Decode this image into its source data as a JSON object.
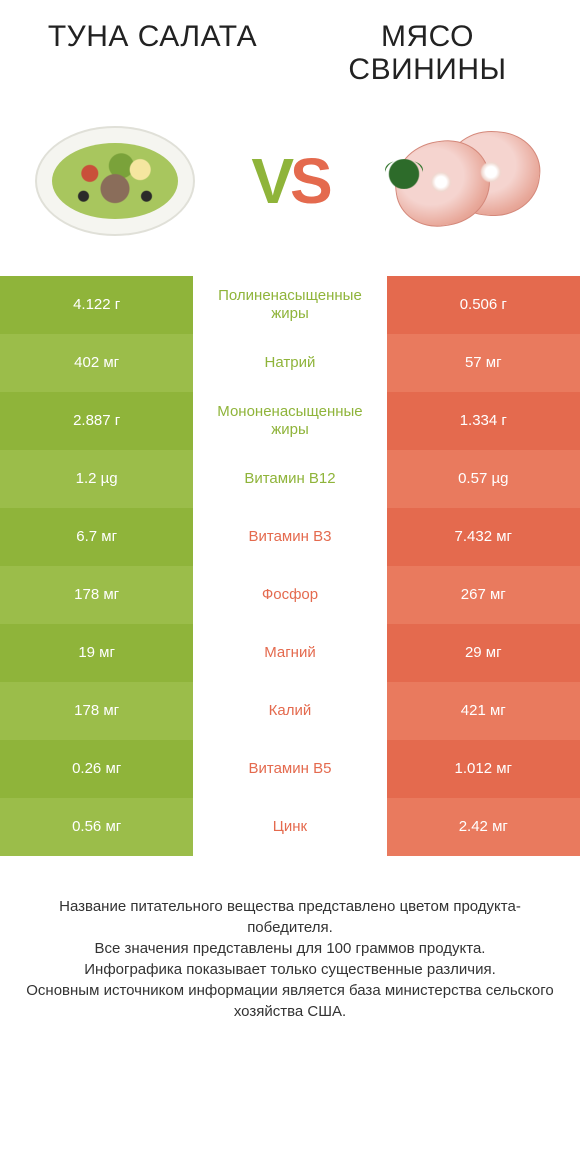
{
  "header": {
    "left_title": "ТУНА САЛАТА",
    "right_title": "МЯСО СВИНИНЫ"
  },
  "vs_label": {
    "v": "V",
    "s": "S"
  },
  "colors": {
    "left_a": "#8fb43a",
    "left_b": "#9bbd4a",
    "right_a": "#e46a4e",
    "right_b": "#e97a5e",
    "mid_left_text": "#8fb43a",
    "mid_right_text": "#e46a4e"
  },
  "rows": [
    {
      "left": "4.122 г",
      "mid": "Полиненасыщенные жиры",
      "right": "0.506 г",
      "winner": "left"
    },
    {
      "left": "402 мг",
      "mid": "Натрий",
      "right": "57 мг",
      "winner": "left"
    },
    {
      "left": "2.887 г",
      "mid": "Мононенасыщенные жиры",
      "right": "1.334 г",
      "winner": "left"
    },
    {
      "left": "1.2 µg",
      "mid": "Витамин B12",
      "right": "0.57 µg",
      "winner": "left"
    },
    {
      "left": "6.7 мг",
      "mid": "Витамин B3",
      "right": "7.432 мг",
      "winner": "right"
    },
    {
      "left": "178 мг",
      "mid": "Фосфор",
      "right": "267 мг",
      "winner": "right"
    },
    {
      "left": "19 мг",
      "mid": "Магний",
      "right": "29 мг",
      "winner": "right"
    },
    {
      "left": "178 мг",
      "mid": "Калий",
      "right": "421 мг",
      "winner": "right"
    },
    {
      "left": "0.26 мг",
      "mid": "Витамин B5",
      "right": "1.012 мг",
      "winner": "right"
    },
    {
      "left": "0.56 мг",
      "mid": "Цинк",
      "right": "2.42 мг",
      "winner": "right"
    }
  ],
  "footer": {
    "line1": "Название питательного вещества представлено цветом продукта-победителя.",
    "line2": "Все значения представлены для 100 граммов продукта.",
    "line3": "Инфографика показывает только существенные различия.",
    "line4": "Основным источником информации является база министерства сельского хозяйства США."
  }
}
